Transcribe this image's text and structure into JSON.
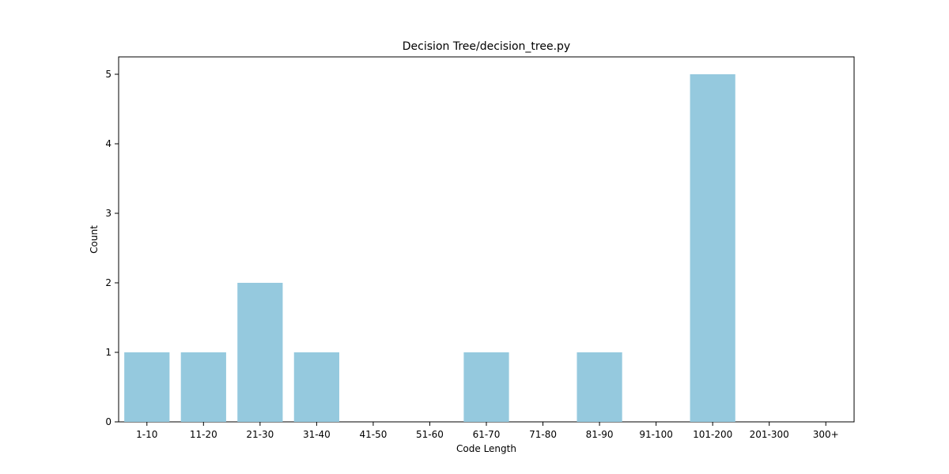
{
  "chart_data": {
    "type": "bar",
    "title": "Decision Tree/decision_tree.py",
    "xlabel": "Code Length",
    "ylabel": "Count",
    "categories": [
      "1-10",
      "11-20",
      "21-30",
      "31-40",
      "41-50",
      "51-60",
      "61-70",
      "71-80",
      "81-90",
      "91-100",
      "101-200",
      "201-300",
      "300+"
    ],
    "values": [
      1,
      1,
      2,
      1,
      0,
      0,
      1,
      0,
      1,
      0,
      5,
      0,
      0
    ],
    "ylim": [
      0,
      5.25
    ],
    "yticks": [
      0,
      1,
      2,
      3,
      4,
      5
    ],
    "grid": false,
    "legend": "none",
    "bar_color": "#95c9de"
  }
}
